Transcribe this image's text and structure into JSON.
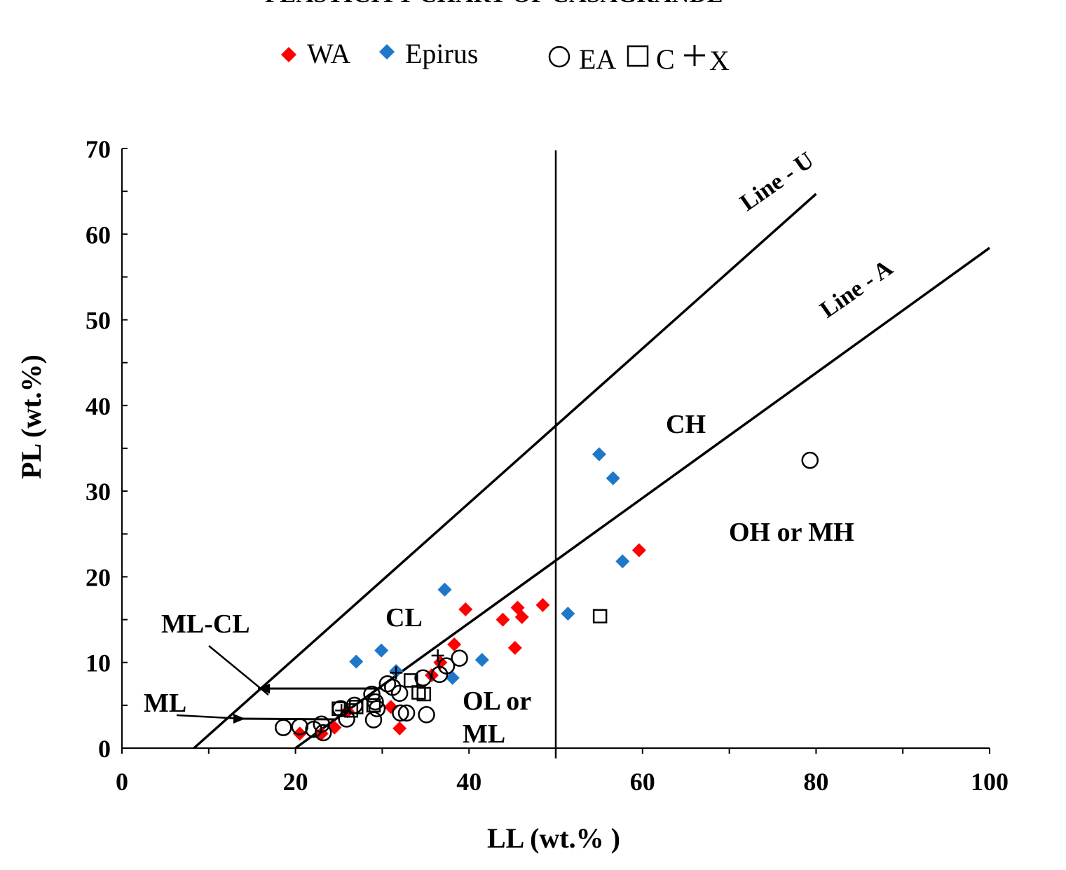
{
  "chart_data": {
    "type": "scatter",
    "title": "PLASTICITY CHART OF CASAGRANDE",
    "xlabel": "LL (wt.% )",
    "ylabel": "PL (wt.%)",
    "xlim": [
      0,
      100
    ],
    "ylim": [
      0,
      70
    ],
    "xticks": [
      "0",
      "20",
      "40",
      "60",
      "80",
      "100"
    ],
    "yticks": [
      "0",
      "10",
      "20",
      "30",
      "40",
      "50",
      "60",
      "70"
    ],
    "grid": false,
    "legend_position": "top",
    "legend": {
      "wa": "WA",
      "epirus": "Epirus",
      "ea": "EA",
      "c": "C",
      "x": "X"
    },
    "colors": {
      "wa": "#ff0000",
      "epirus": "#1f77c8",
      "black": "#000000"
    },
    "reference_lines": {
      "u_line": {
        "label": "Line - U",
        "points": [
          [
            8.3,
            0
          ],
          [
            80,
            64.7
          ]
        ]
      },
      "a_line": {
        "label": "Line - A",
        "points": [
          [
            20,
            0
          ],
          [
            100,
            58.4
          ]
        ]
      },
      "ll50_line": {
        "x": 50,
        "y_range": [
          -1.2,
          69.8
        ]
      }
    },
    "zone_labels": {
      "ch": "CH",
      "cl": "CL",
      "oh_mh": "OH or MH",
      "ol_ml_1": "OL or",
      "ol_ml_2": "ML",
      "ml_cl": "ML-CL",
      "ml": "ML"
    },
    "series": [
      {
        "name": "WA",
        "marker": "diamond",
        "color": "#ff0000",
        "points": [
          [
            20.5,
            1.7
          ],
          [
            23,
            1.7
          ],
          [
            24.5,
            2.4
          ],
          [
            26,
            4.3
          ],
          [
            31,
            4.8
          ],
          [
            32,
            2.3
          ],
          [
            35.7,
            8.5
          ],
          [
            36.7,
            10
          ],
          [
            38.3,
            12.1
          ],
          [
            39.6,
            16.2
          ],
          [
            43.9,
            15
          ],
          [
            45.3,
            11.7
          ],
          [
            45.6,
            16.4
          ],
          [
            46.1,
            15.3
          ],
          [
            48.5,
            16.7
          ],
          [
            59.6,
            23.1
          ]
        ]
      },
      {
        "name": "Epirus",
        "marker": "diamond",
        "color": "#1f77c8",
        "points": [
          [
            27,
            10.1
          ],
          [
            29.9,
            11.4
          ],
          [
            31.6,
            9
          ],
          [
            37.2,
            18.5
          ],
          [
            38.1,
            8.2
          ],
          [
            41.5,
            10.3
          ],
          [
            51.4,
            15.7
          ],
          [
            55,
            34.3
          ],
          [
            56.6,
            31.5
          ],
          [
            57.7,
            21.8
          ]
        ]
      },
      {
        "name": "EA",
        "marker": "circle",
        "color": "#000000",
        "points": [
          [
            18.6,
            2.4
          ],
          [
            20.5,
            2.5
          ],
          [
            22.1,
            2.2
          ],
          [
            23,
            2.8
          ],
          [
            23.2,
            1.8
          ],
          [
            25.2,
            4.6
          ],
          [
            25.9,
            3.4
          ],
          [
            26.8,
            5
          ],
          [
            28.8,
            6.3
          ],
          [
            29.2,
            5.4
          ],
          [
            29.4,
            4.6
          ],
          [
            29,
            3.3
          ],
          [
            30.6,
            7.5
          ],
          [
            31.2,
            7.1
          ],
          [
            32,
            6.4
          ],
          [
            32.1,
            4.1
          ],
          [
            32.8,
            4.1
          ],
          [
            35.1,
            3.9
          ],
          [
            34.7,
            8.2
          ],
          [
            36.6,
            8.6
          ],
          [
            37.4,
            9.6
          ],
          [
            38.9,
            10.5
          ],
          [
            79.3,
            33.6
          ]
        ]
      },
      {
        "name": "C",
        "marker": "square",
        "color": "#000000",
        "points": [
          [
            25,
            4.6
          ],
          [
            26.4,
            4.4
          ],
          [
            27,
            4.8
          ],
          [
            29,
            5
          ],
          [
            33.3,
            7.9
          ],
          [
            34.2,
            6.5
          ],
          [
            34.8,
            6.3
          ],
          [
            55.1,
            15.4
          ]
        ]
      },
      {
        "name": "X",
        "marker": "cross",
        "color": "#000000",
        "points": [
          [
            25.3,
            4.4
          ],
          [
            31.6,
            8.8
          ],
          [
            36.4,
            10.8
          ]
        ]
      }
    ]
  }
}
